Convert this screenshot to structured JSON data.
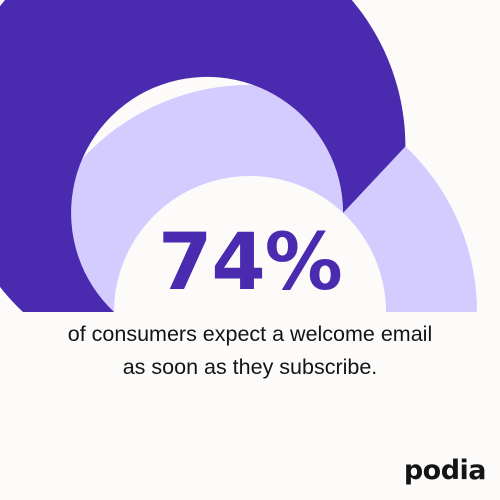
{
  "chart_data": {
    "type": "gauge",
    "value": 74,
    "min": 0,
    "max": 100,
    "value_label": "74%",
    "caption": "of consumers expect a welcome email as soon as they subscribe."
  },
  "colors": {
    "filled": "#4a2bb0",
    "remainder": "#d4ccff",
    "background": "#fcfbfa",
    "value_text": "#4a2bb0",
    "caption_text": "#141414"
  },
  "brand": {
    "logo_text": "podia"
  }
}
